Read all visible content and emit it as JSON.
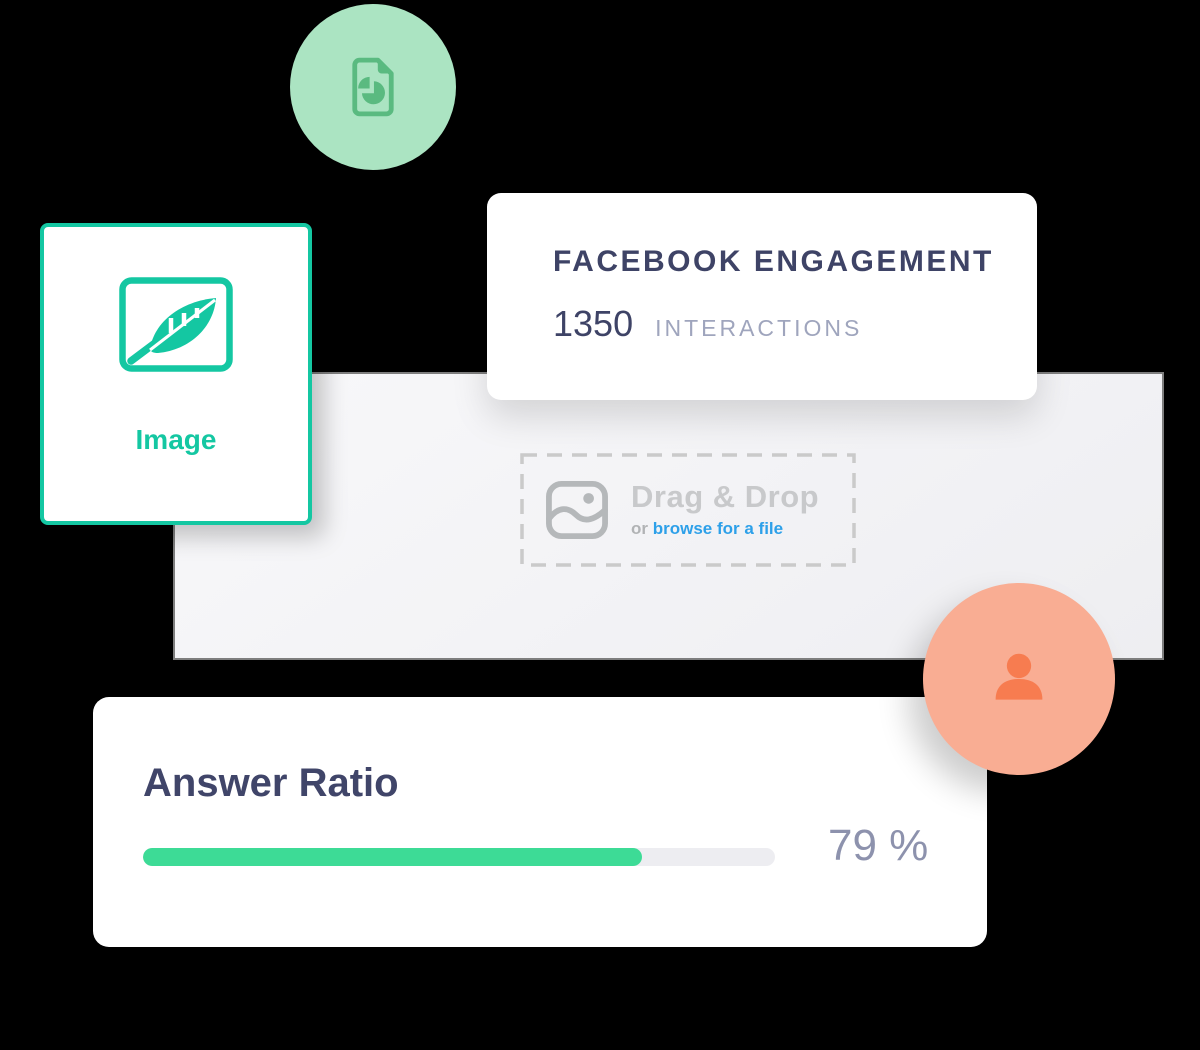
{
  "palette": {
    "teal": "#14c7a2",
    "green_circle_bg": "#abe4c2",
    "green_icon": "#5aba80",
    "navy": "#3e4366",
    "navy_muted": "#9fa5bd",
    "panel_bg": "#f3f3f5",
    "panel_border": "#7e7e7e",
    "dash_gray": "#cacaca",
    "drag_text_gray": "#c8c9cb",
    "link_blue": "#2da0e9",
    "orange_circle_bg": "#f9ad93",
    "orange_icon": "#f77c50",
    "progress_green": "#3ddb96",
    "progress_track": "#ededf1",
    "percent_gray": "#8d92ad"
  },
  "doc_circle": {
    "icon": "document-pie-chart"
  },
  "image_card": {
    "label": "Image"
  },
  "facebook_card": {
    "title": "FACEBOOK ENGAGEMENT",
    "value": "1350",
    "unit": "INTERACTIONS"
  },
  "dropzone": {
    "title": "Drag & Drop",
    "prefix": "or",
    "link": "browse for a file"
  },
  "user_circle": {
    "icon": "user"
  },
  "answer_card": {
    "title": "Answer Ratio",
    "percent": 79,
    "percent_label": "79 %"
  }
}
